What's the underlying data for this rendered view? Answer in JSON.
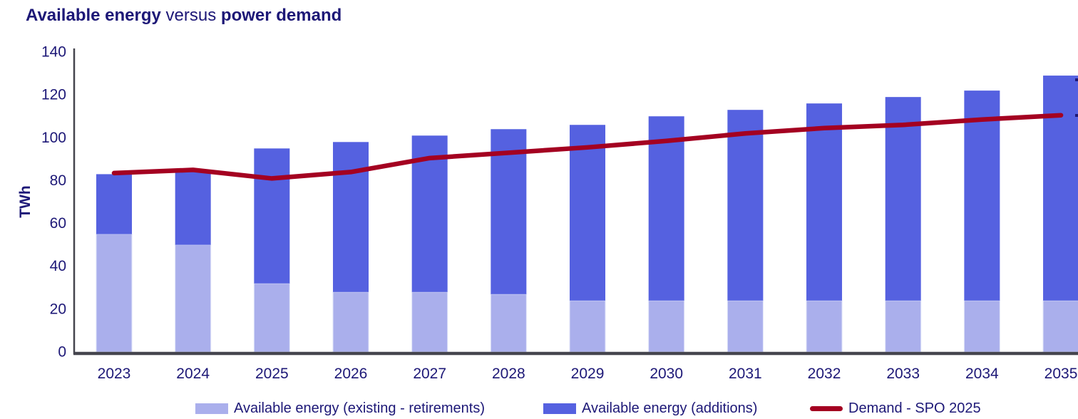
{
  "title": {
    "part_bold_1": "Available energy",
    "part_regular": " versus ",
    "part_bold_2": "power demand"
  },
  "y_axis": {
    "label": "TWh",
    "ticks": [
      0,
      20,
      40,
      60,
      80,
      100,
      120,
      140
    ],
    "min": 0,
    "max": 140
  },
  "x_axis": {
    "labels": [
      "2023",
      "2024",
      "2025",
      "2026",
      "2027",
      "2028",
      "2029",
      "2030",
      "2031",
      "2032",
      "2033",
      "2034",
      "2035"
    ]
  },
  "legend": {
    "items": [
      {
        "label": "Available energy (existing - retirements)",
        "color": "#AAAFEC",
        "swatch": "box"
      },
      {
        "label": "Available energy (additions)",
        "color": "#5561E0",
        "swatch": "box"
      },
      {
        "label": "Demand - SPO 2025",
        "color": "#A40021",
        "swatch": "line"
      }
    ]
  },
  "colors": {
    "bar_existing": "#AAAFEC",
    "bar_additions": "#5561E0",
    "demand_line": "#A40021",
    "text_navy": "#1D1877",
    "axis_gray": "#45454E"
  },
  "chart_data": {
    "type": "bar",
    "subtype": "stacked-bar-with-line",
    "title": "Available energy versus power demand",
    "xlabel": "",
    "ylabel": "TWh",
    "ylim": [
      0,
      140
    ],
    "grid": false,
    "legend_position": "bottom",
    "categories": [
      2023,
      2024,
      2025,
      2026,
      2027,
      2028,
      2029,
      2030,
      2031,
      2032,
      2033,
      2034,
      2035
    ],
    "series": [
      {
        "name": "Available energy (existing - retirements)",
        "type": "bar",
        "stack": "available",
        "color": "#AAAFEC",
        "values": [
          55,
          50,
          32,
          28,
          28,
          27,
          24,
          24,
          24,
          24,
          24,
          24,
          24
        ]
      },
      {
        "name": "Available energy (additions)",
        "type": "bar",
        "stack": "available",
        "color": "#5561E0",
        "values": [
          28,
          34,
          63,
          70,
          73,
          77,
          82,
          86,
          89,
          92,
          95,
          98,
          105
        ]
      },
      {
        "name": "Demand - SPO 2025",
        "type": "line",
        "color": "#A40021",
        "values": [
          83.5,
          85,
          81,
          84,
          90.5,
          93,
          95.5,
          98.5,
          102,
          104.5,
          106,
          108.5,
          110.5
        ]
      }
    ],
    "stacked_totals": [
      83,
      84,
      95,
      98,
      101,
      104,
      106,
      110,
      113,
      116,
      119,
      122,
      129
    ]
  }
}
